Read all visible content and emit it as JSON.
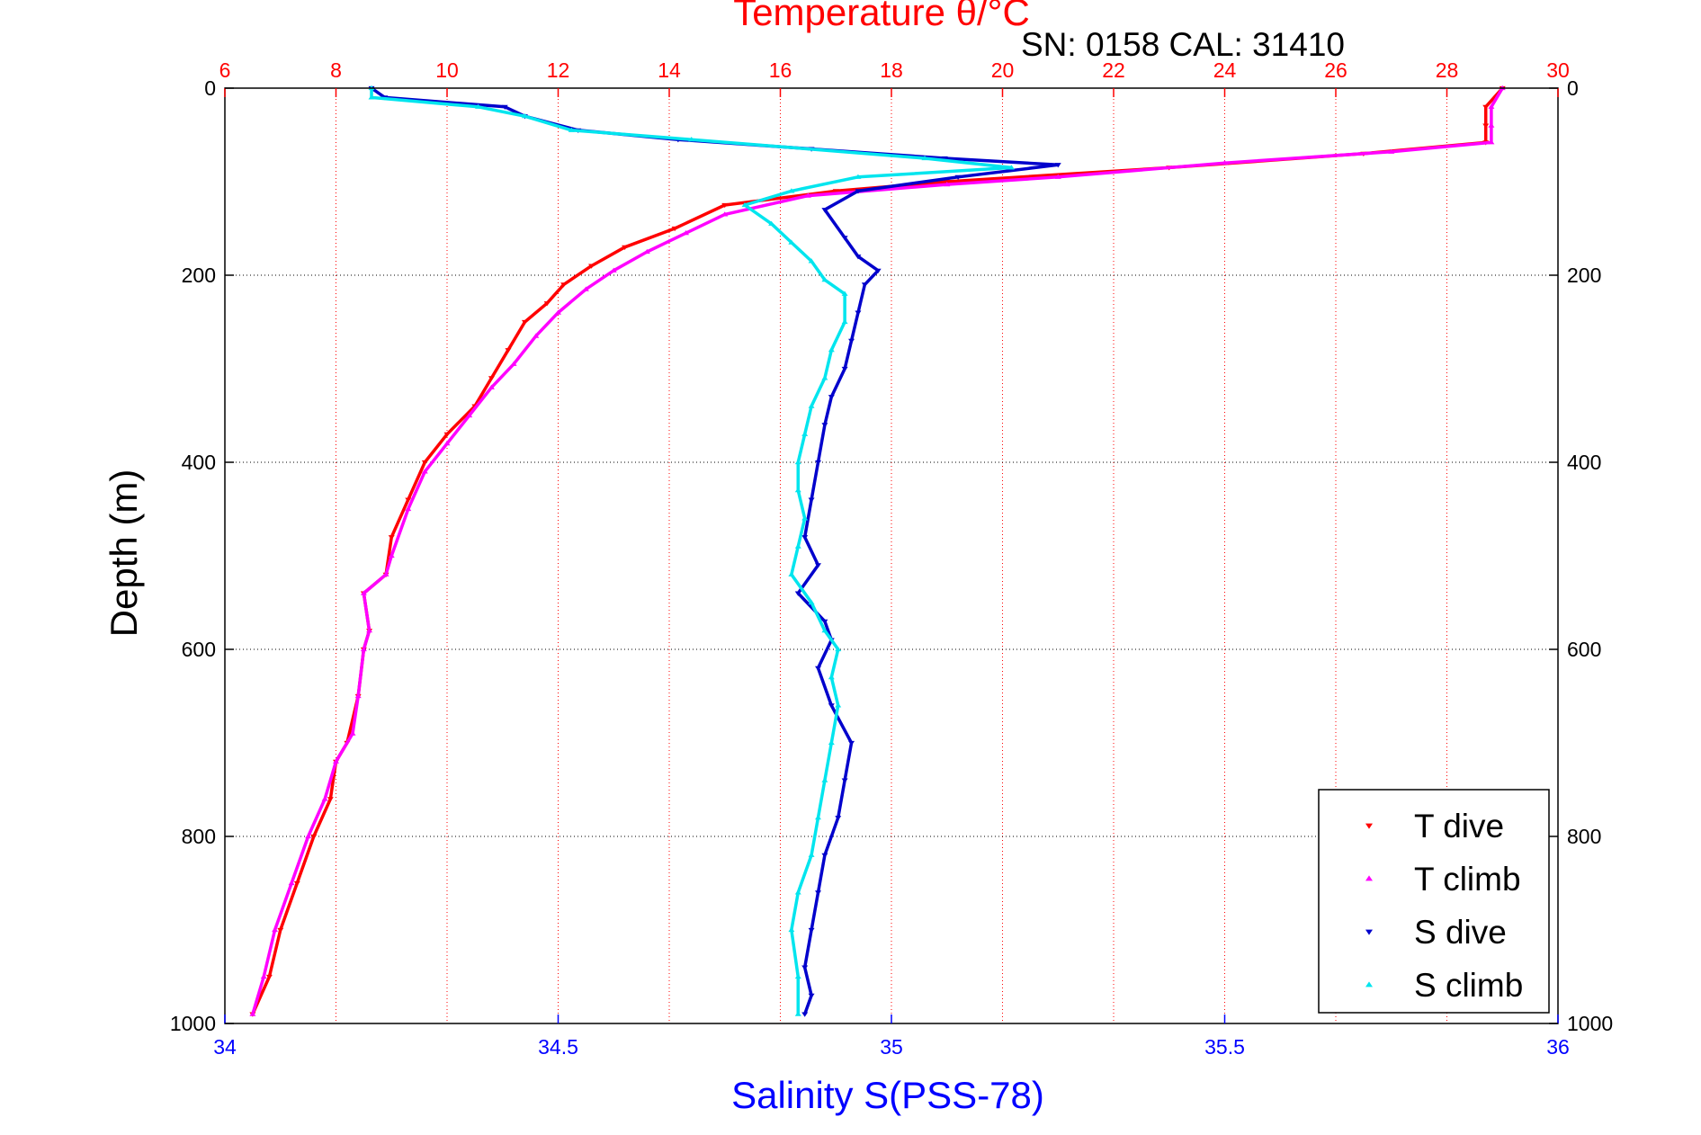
{
  "chart_data": {
    "type": "scatter",
    "title_top": "Temperature θ/°C",
    "subtitle": "SN: 0158  CAL: 31410",
    "ylabel": "Depth (m)",
    "xlabel_bottom": "Salinity S(PSS-78)",
    "y_axis": {
      "range": [
        0,
        1000
      ],
      "reversed": true,
      "ticks": [
        "0",
        "200",
        "400",
        "600",
        "800",
        "1000"
      ]
    },
    "x_top_axis": {
      "quantity": "temperature",
      "range": [
        6,
        30
      ],
      "ticks": [
        "6",
        "8",
        "10",
        "12",
        "14",
        "16",
        "18",
        "20",
        "22",
        "24",
        "26",
        "28",
        "30"
      ]
    },
    "x_bottom_axis": {
      "quantity": "salinity",
      "range": [
        34,
        36
      ],
      "ticks": [
        "34",
        "34.5",
        "35",
        "35.5",
        "36"
      ]
    },
    "grid": true,
    "legend_position": "bottom-right",
    "colors": {
      "t_dive": "#ff0000",
      "t_climb": "#ff00ff",
      "s_dive": "#0000cc",
      "s_climb": "#00e5ee",
      "top_axis": "#ff0000",
      "bottom_axis": "#0000ff"
    },
    "series": [
      {
        "name": "T dive",
        "axis": "top",
        "marker": "triangle-down",
        "points": [
          [
            29.0,
            0
          ],
          [
            28.7,
            20
          ],
          [
            28.7,
            40
          ],
          [
            28.7,
            58
          ],
          [
            26.5,
            70
          ],
          [
            23.0,
            85
          ],
          [
            19.0,
            100
          ],
          [
            17.0,
            110
          ],
          [
            15.0,
            125
          ],
          [
            14.1,
            150
          ],
          [
            13.2,
            170
          ],
          [
            12.6,
            190
          ],
          [
            12.1,
            210
          ],
          [
            11.8,
            230
          ],
          [
            11.4,
            250
          ],
          [
            11.1,
            280
          ],
          [
            10.8,
            310
          ],
          [
            10.5,
            340
          ],
          [
            10.0,
            370
          ],
          [
            9.6,
            400
          ],
          [
            9.3,
            440
          ],
          [
            9.0,
            480
          ],
          [
            8.9,
            520
          ],
          [
            8.5,
            540
          ],
          [
            8.6,
            580
          ],
          [
            8.5,
            600
          ],
          [
            8.4,
            650
          ],
          [
            8.2,
            700
          ],
          [
            8.0,
            720
          ],
          [
            7.9,
            760
          ],
          [
            7.6,
            800
          ],
          [
            7.3,
            850
          ],
          [
            7.0,
            900
          ],
          [
            6.8,
            950
          ],
          [
            6.5,
            990
          ]
        ]
      },
      {
        "name": "T climb",
        "axis": "top",
        "marker": "triangle-up",
        "points": [
          [
            29.0,
            0
          ],
          [
            28.8,
            20
          ],
          [
            28.8,
            40
          ],
          [
            28.8,
            58
          ],
          [
            27.0,
            68
          ],
          [
            24.0,
            80
          ],
          [
            21.0,
            95
          ],
          [
            19.0,
            103
          ],
          [
            16.5,
            115
          ],
          [
            15.0,
            135
          ],
          [
            14.3,
            155
          ],
          [
            13.6,
            175
          ],
          [
            13.0,
            195
          ],
          [
            12.5,
            215
          ],
          [
            12.0,
            240
          ],
          [
            11.6,
            265
          ],
          [
            11.2,
            295
          ],
          [
            10.8,
            320
          ],
          [
            10.4,
            350
          ],
          [
            10.0,
            380
          ],
          [
            9.6,
            410
          ],
          [
            9.3,
            450
          ],
          [
            9.0,
            500
          ],
          [
            8.9,
            520
          ],
          [
            8.5,
            540
          ],
          [
            8.6,
            580
          ],
          [
            8.5,
            600
          ],
          [
            8.4,
            650
          ],
          [
            8.3,
            690
          ],
          [
            8.0,
            720
          ],
          [
            7.8,
            760
          ],
          [
            7.5,
            800
          ],
          [
            7.2,
            850
          ],
          [
            6.9,
            900
          ],
          [
            6.7,
            950
          ],
          [
            6.5,
            990
          ]
        ]
      },
      {
        "name": "S dive",
        "axis": "bottom",
        "marker": "triangle-down",
        "points": [
          [
            34.22,
            0
          ],
          [
            34.24,
            10
          ],
          [
            34.42,
            20
          ],
          [
            34.45,
            30
          ],
          [
            34.53,
            45
          ],
          [
            34.68,
            55
          ],
          [
            34.88,
            65
          ],
          [
            35.08,
            75
          ],
          [
            35.25,
            82
          ],
          [
            35.1,
            95
          ],
          [
            34.95,
            110
          ],
          [
            34.9,
            130
          ],
          [
            34.93,
            160
          ],
          [
            34.95,
            180
          ],
          [
            34.98,
            195
          ],
          [
            34.96,
            210
          ],
          [
            34.95,
            240
          ],
          [
            34.94,
            270
          ],
          [
            34.93,
            300
          ],
          [
            34.91,
            330
          ],
          [
            34.9,
            360
          ],
          [
            34.89,
            400
          ],
          [
            34.88,
            440
          ],
          [
            34.87,
            480
          ],
          [
            34.89,
            510
          ],
          [
            34.86,
            540
          ],
          [
            34.9,
            570
          ],
          [
            34.91,
            590
          ],
          [
            34.89,
            620
          ],
          [
            34.91,
            660
          ],
          [
            34.94,
            700
          ],
          [
            34.93,
            740
          ],
          [
            34.92,
            780
          ],
          [
            34.9,
            820
          ],
          [
            34.89,
            860
          ],
          [
            34.88,
            900
          ],
          [
            34.87,
            940
          ],
          [
            34.88,
            970
          ],
          [
            34.87,
            990
          ]
        ]
      },
      {
        "name": "S climb",
        "axis": "bottom",
        "marker": "triangle-up",
        "points": [
          [
            34.22,
            0
          ],
          [
            34.22,
            10
          ],
          [
            34.38,
            20
          ],
          [
            34.45,
            30
          ],
          [
            34.52,
            45
          ],
          [
            34.7,
            55
          ],
          [
            35.05,
            75
          ],
          [
            35.18,
            85
          ],
          [
            34.95,
            95
          ],
          [
            34.85,
            110
          ],
          [
            34.78,
            125
          ],
          [
            34.82,
            145
          ],
          [
            34.85,
            165
          ],
          [
            34.88,
            185
          ],
          [
            34.9,
            205
          ],
          [
            34.93,
            220
          ],
          [
            34.93,
            250
          ],
          [
            34.91,
            280
          ],
          [
            34.9,
            310
          ],
          [
            34.88,
            340
          ],
          [
            34.87,
            370
          ],
          [
            34.86,
            400
          ],
          [
            34.86,
            430
          ],
          [
            34.87,
            460
          ],
          [
            34.86,
            490
          ],
          [
            34.85,
            520
          ],
          [
            34.88,
            550
          ],
          [
            34.9,
            580
          ],
          [
            34.92,
            600
          ],
          [
            34.91,
            630
          ],
          [
            34.92,
            660
          ],
          [
            34.91,
            700
          ],
          [
            34.9,
            740
          ],
          [
            34.89,
            780
          ],
          [
            34.88,
            820
          ],
          [
            34.86,
            860
          ],
          [
            34.85,
            900
          ],
          [
            34.86,
            950
          ],
          [
            34.86,
            990
          ]
        ]
      }
    ]
  }
}
